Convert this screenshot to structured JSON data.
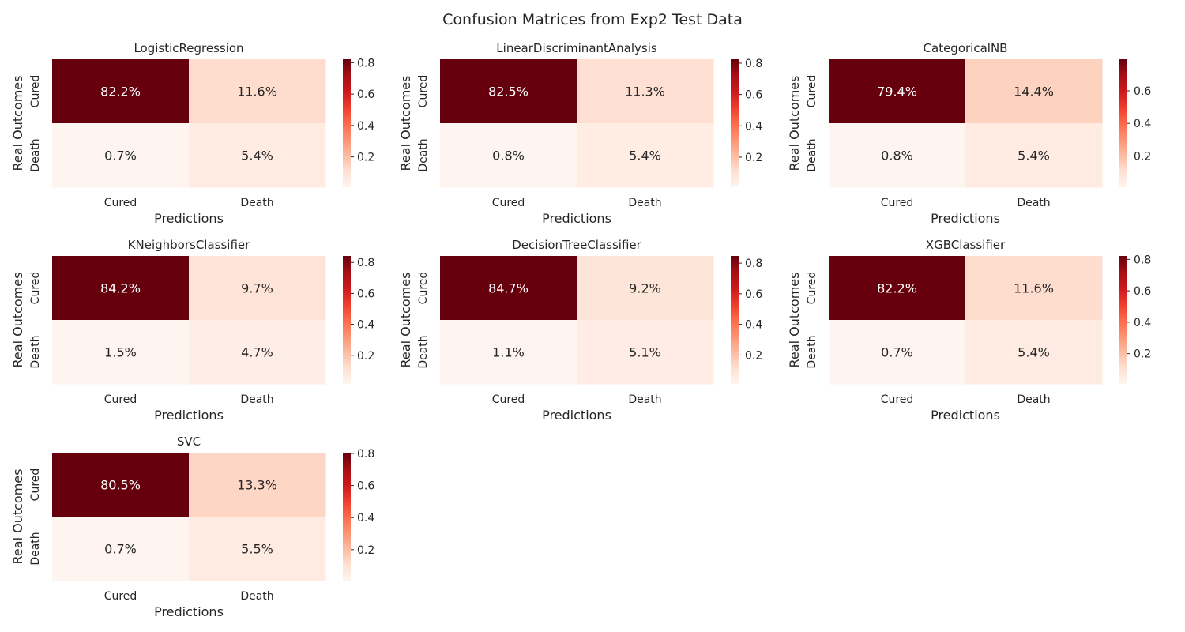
{
  "figure_title": "Confusion Matrices from Exp2 Test Data",
  "colormap": {
    "name": "Reds",
    "stops": [
      "#fff5f0",
      "#fee0d2",
      "#fcbba1",
      "#fc9272",
      "#fb6a4a",
      "#ef3b2c",
      "#cb181d",
      "#a50f15",
      "#67000d"
    ]
  },
  "cell_text_colors": {
    "dark": "#262626",
    "light": "#ffffff"
  },
  "chart_data": [
    {
      "type": "heatmap",
      "title": "LogisticRegression",
      "xlabel": "Predictions",
      "ylabel": "Real Outcomes",
      "x_categories": [
        "Cured",
        "Death"
      ],
      "y_categories": [
        "Cured",
        "Death"
      ],
      "values": [
        [
          0.822,
          0.116
        ],
        [
          0.007,
          0.054
        ]
      ],
      "annotations": [
        [
          "82.2%",
          "11.6%"
        ],
        [
          "0.7%",
          "5.4%"
        ]
      ],
      "colorbar": {
        "vmin": 0.007,
        "vmax": 0.822,
        "ticks": [
          0.2,
          0.4,
          0.6,
          0.8
        ],
        "tick_labels": [
          "0.2",
          "0.4",
          "0.6",
          "0.8"
        ]
      }
    },
    {
      "type": "heatmap",
      "title": "LinearDiscriminantAnalysis",
      "xlabel": "Predictions",
      "ylabel": "Real Outcomes",
      "x_categories": [
        "Cured",
        "Death"
      ],
      "y_categories": [
        "Cured",
        "Death"
      ],
      "values": [
        [
          0.825,
          0.113
        ],
        [
          0.008,
          0.054
        ]
      ],
      "annotations": [
        [
          "82.5%",
          "11.3%"
        ],
        [
          "0.8%",
          "5.4%"
        ]
      ],
      "colorbar": {
        "vmin": 0.008,
        "vmax": 0.825,
        "ticks": [
          0.2,
          0.4,
          0.6,
          0.8
        ],
        "tick_labels": [
          "0.2",
          "0.4",
          "0.6",
          "0.8"
        ]
      }
    },
    {
      "type": "heatmap",
      "title": "CategoricalNB",
      "xlabel": "Predictions",
      "ylabel": "Real Outcomes",
      "x_categories": [
        "Cured",
        "Death"
      ],
      "y_categories": [
        "Cured",
        "Death"
      ],
      "values": [
        [
          0.794,
          0.144
        ],
        [
          0.008,
          0.054
        ]
      ],
      "annotations": [
        [
          "79.4%",
          "14.4%"
        ],
        [
          "0.8%",
          "5.4%"
        ]
      ],
      "colorbar": {
        "vmin": 0.008,
        "vmax": 0.794,
        "ticks": [
          0.2,
          0.4,
          0.6
        ],
        "tick_labels": [
          "0.2",
          "0.4",
          "0.6"
        ]
      }
    },
    {
      "type": "heatmap",
      "title": "KNeighborsClassifier",
      "xlabel": "Predictions",
      "ylabel": "Real Outcomes",
      "x_categories": [
        "Cured",
        "Death"
      ],
      "y_categories": [
        "Cured",
        "Death"
      ],
      "values": [
        [
          0.842,
          0.097
        ],
        [
          0.015,
          0.047
        ]
      ],
      "annotations": [
        [
          "84.2%",
          "9.7%"
        ],
        [
          "1.5%",
          "4.7%"
        ]
      ],
      "colorbar": {
        "vmin": 0.015,
        "vmax": 0.842,
        "ticks": [
          0.2,
          0.4,
          0.6,
          0.8
        ],
        "tick_labels": [
          "0.2",
          "0.4",
          "0.6",
          "0.8"
        ]
      }
    },
    {
      "type": "heatmap",
      "title": "DecisionTreeClassifier",
      "xlabel": "Predictions",
      "ylabel": "Real Outcomes",
      "x_categories": [
        "Cured",
        "Death"
      ],
      "y_categories": [
        "Cured",
        "Death"
      ],
      "values": [
        [
          0.847,
          0.092
        ],
        [
          0.011,
          0.051
        ]
      ],
      "annotations": [
        [
          "84.7%",
          "9.2%"
        ],
        [
          "1.1%",
          "5.1%"
        ]
      ],
      "colorbar": {
        "vmin": 0.011,
        "vmax": 0.847,
        "ticks": [
          0.2,
          0.4,
          0.6,
          0.8
        ],
        "tick_labels": [
          "0.2",
          "0.4",
          "0.6",
          "0.8"
        ]
      }
    },
    {
      "type": "heatmap",
      "title": "XGBClassifier",
      "xlabel": "Predictions",
      "ylabel": "Real Outcomes",
      "x_categories": [
        "Cured",
        "Death"
      ],
      "y_categories": [
        "Cured",
        "Death"
      ],
      "values": [
        [
          0.822,
          0.116
        ],
        [
          0.007,
          0.054
        ]
      ],
      "annotations": [
        [
          "82.2%",
          "11.6%"
        ],
        [
          "0.7%",
          "5.4%"
        ]
      ],
      "colorbar": {
        "vmin": 0.007,
        "vmax": 0.822,
        "ticks": [
          0.2,
          0.4,
          0.6,
          0.8
        ],
        "tick_labels": [
          "0.2",
          "0.4",
          "0.6",
          "0.8"
        ]
      }
    },
    {
      "type": "heatmap",
      "title": "SVC",
      "xlabel": "Predictions",
      "ylabel": "Real Outcomes",
      "x_categories": [
        "Cured",
        "Death"
      ],
      "y_categories": [
        "Cured",
        "Death"
      ],
      "values": [
        [
          0.805,
          0.133
        ],
        [
          0.007,
          0.055
        ]
      ],
      "annotations": [
        [
          "80.5%",
          "13.3%"
        ],
        [
          "0.7%",
          "5.5%"
        ]
      ],
      "colorbar": {
        "vmin": 0.007,
        "vmax": 0.805,
        "ticks": [
          0.2,
          0.4,
          0.6,
          0.8
        ],
        "tick_labels": [
          "0.2",
          "0.4",
          "0.6",
          "0.8"
        ]
      }
    }
  ]
}
